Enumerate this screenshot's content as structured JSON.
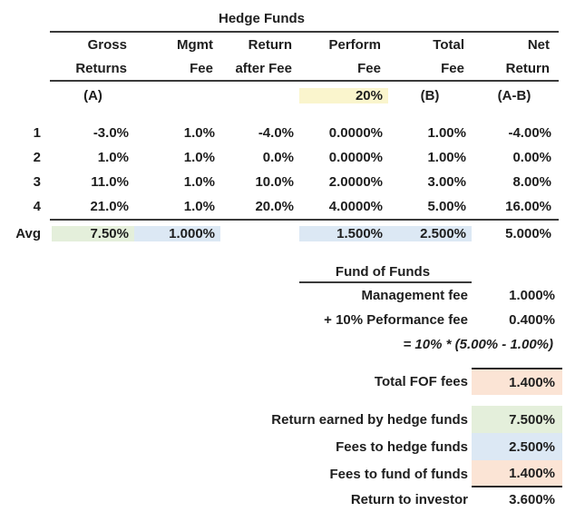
{
  "colors": {
    "highlight_yellow": "#faf5cd",
    "highlight_green": "#e4efdb",
    "highlight_blue": "#dce8f4",
    "highlight_peach": "#fbe4d5",
    "text": "#1e1e1e",
    "rule_lines": "#3a3a3a"
  },
  "hedge_table": {
    "title": "Hedge Funds",
    "col_headers": [
      {
        "line1": "Gross",
        "line2": "Returns"
      },
      {
        "line1": "Mgmt",
        "line2": "Fee"
      },
      {
        "line1": "Return",
        "line2": "after Fee"
      },
      {
        "line1": "Perform",
        "line2": "Fee"
      },
      {
        "line1": "Total",
        "line2": "Fee"
      },
      {
        "line1": "Net",
        "line2": "Return"
      }
    ],
    "sub_row": {
      "a_label": "(A)",
      "perform_rate": "20%",
      "b_label": "(B)",
      "ab_label": "(A-B)"
    },
    "rows": [
      {
        "label": "1",
        "cells": [
          "-3.0%",
          "1.0%",
          "-4.0%",
          "0.0000%",
          "1.00%",
          "-4.00%"
        ]
      },
      {
        "label": "2",
        "cells": [
          "1.0%",
          "1.0%",
          "0.0%",
          "0.0000%",
          "1.00%",
          "0.00%"
        ]
      },
      {
        "label": "3",
        "cells": [
          "11.0%",
          "1.0%",
          "10.0%",
          "2.0000%",
          "3.00%",
          "8.00%"
        ]
      },
      {
        "label": "4",
        "cells": [
          "21.0%",
          "1.0%",
          "20.0%",
          "4.0000%",
          "5.00%",
          "16.00%"
        ]
      }
    ],
    "avg_row": {
      "label": "Avg",
      "cells": [
        "7.50%",
        "1.000%",
        "",
        "1.500%",
        "2.500%",
        "5.000%"
      ]
    }
  },
  "fof": {
    "title": "Fund of Funds",
    "rows": [
      {
        "label": "Management fee",
        "value": "1.000%"
      },
      {
        "label": "+ 10% Peformance fee",
        "value": "0.400%"
      }
    ],
    "formula": "= 10% * (5.00% - 1.00%)",
    "total": {
      "label": "Total FOF fees",
      "value": "1.400%"
    }
  },
  "summary": {
    "rows": [
      {
        "label": "Return earned by hedge funds",
        "value": "7.500%"
      },
      {
        "label": "Fees to hedge funds",
        "value": "2.500%"
      },
      {
        "label": "Fees to fund of funds",
        "value": "1.400%"
      },
      {
        "label": "Return to investor",
        "value": "3.600%"
      }
    ]
  }
}
